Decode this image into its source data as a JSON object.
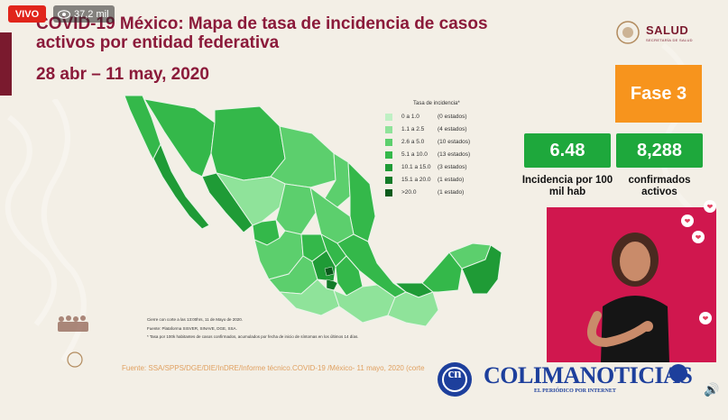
{
  "overlay": {
    "live_label": "VIVO",
    "views": "37,2 mil"
  },
  "header": {
    "title": "COVID-19 México: Mapa de tasa de incidencia de casos activos por entidad federativa",
    "date": "28 abr – 11 may, 2020"
  },
  "logo": {
    "name": "SALUD",
    "subtitle": "SECRETARÍA DE SALUD"
  },
  "phase": {
    "label": "Fase 3"
  },
  "stats": [
    {
      "value": "6.48",
      "label": "Incidencia por 100 mil hab",
      "color": "#1ea83c"
    },
    {
      "value": "8,288",
      "label": "confirmados activos",
      "color": "#1ea83c"
    }
  ],
  "legend": {
    "title": "Tasa de incidencia*",
    "items": [
      {
        "range": "0 a 1.0",
        "count": "(0 estados)",
        "color": "#bff0c4"
      },
      {
        "range": "1.1 a 2.5",
        "count": "(4 estados)",
        "color": "#8fe39a"
      },
      {
        "range": "2.6 a 5.0",
        "count": "(10 estados)",
        "color": "#5ccf6d"
      },
      {
        "range": "5.1 a 10.0",
        "count": "(13 estados)",
        "color": "#34b84a"
      },
      {
        "range": "10.1 a 15.0",
        "count": "(3 estados)",
        "color": "#1f9b36"
      },
      {
        "range": "15.1 a 20.0",
        "count": "(1 estado)",
        "color": "#137a28"
      },
      {
        "range": ">20.0",
        "count": "(1 estado)",
        "color": "#0b5b1c"
      }
    ]
  },
  "notes": [
    "Cierre con corte a las 13:00hrs, 11 de Mayo de 2020.",
    "Fuente: Plataforma SISVER, SINAVE, DGE, SSA.",
    "* Tasa por 100k habitantes de casos confirmados, acumulados por fecha de inicio de síntomas en los últimos 14 días."
  ],
  "footer": {
    "source": "Fuente: SSA/SPPS/DGE/DIE/InDRE/Informe técnico.COVID-19 /México- 11 mayo, 2020 (corte"
  },
  "brand": {
    "name": "COLIMANOTICIAS",
    "tagline": "EL PERIÓDICO POR INTERNET",
    "initials": "cn"
  },
  "colors": {
    "accent": "#8b1a3a",
    "phase": "#f7941d",
    "stat": "#1ea83c",
    "signer_bg": "#d0174e",
    "brand": "#1d3f9c"
  }
}
